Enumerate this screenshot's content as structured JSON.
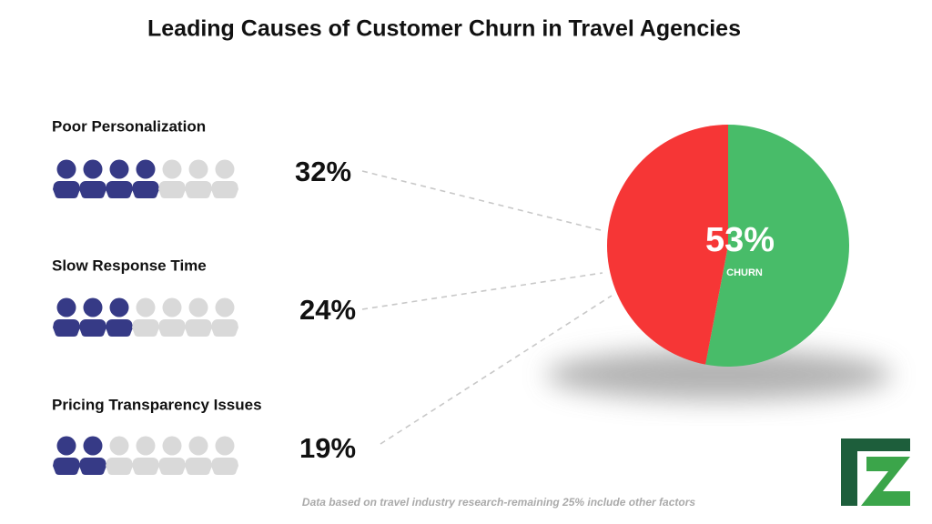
{
  "chart_data": [
    {
      "type": "pictogram",
      "title": "Leading Causes of Customer Churn in Travel Agencies",
      "categories": [
        "Poor Personalization",
        "Slow Response Time",
        "Pricing Transparency Issues"
      ],
      "values": [
        32,
        24,
        19
      ],
      "value_labels": [
        "32%",
        "24%",
        "19%"
      ],
      "icons_filled": [
        4,
        3,
        2
      ],
      "icons_total": 7,
      "filled_color": "#363a86",
      "empty_color": "#d9d9d9",
      "footnote": "Data based on travel industry research-remaining 25% include other factors"
    },
    {
      "type": "pie",
      "categories": [
        "CHURN",
        null
      ],
      "values": [
        53,
        47
      ],
      "value_labels": [
        "53%",
        null
      ],
      "colors": [
        "#48bc69",
        "#f63636"
      ]
    }
  ]
}
